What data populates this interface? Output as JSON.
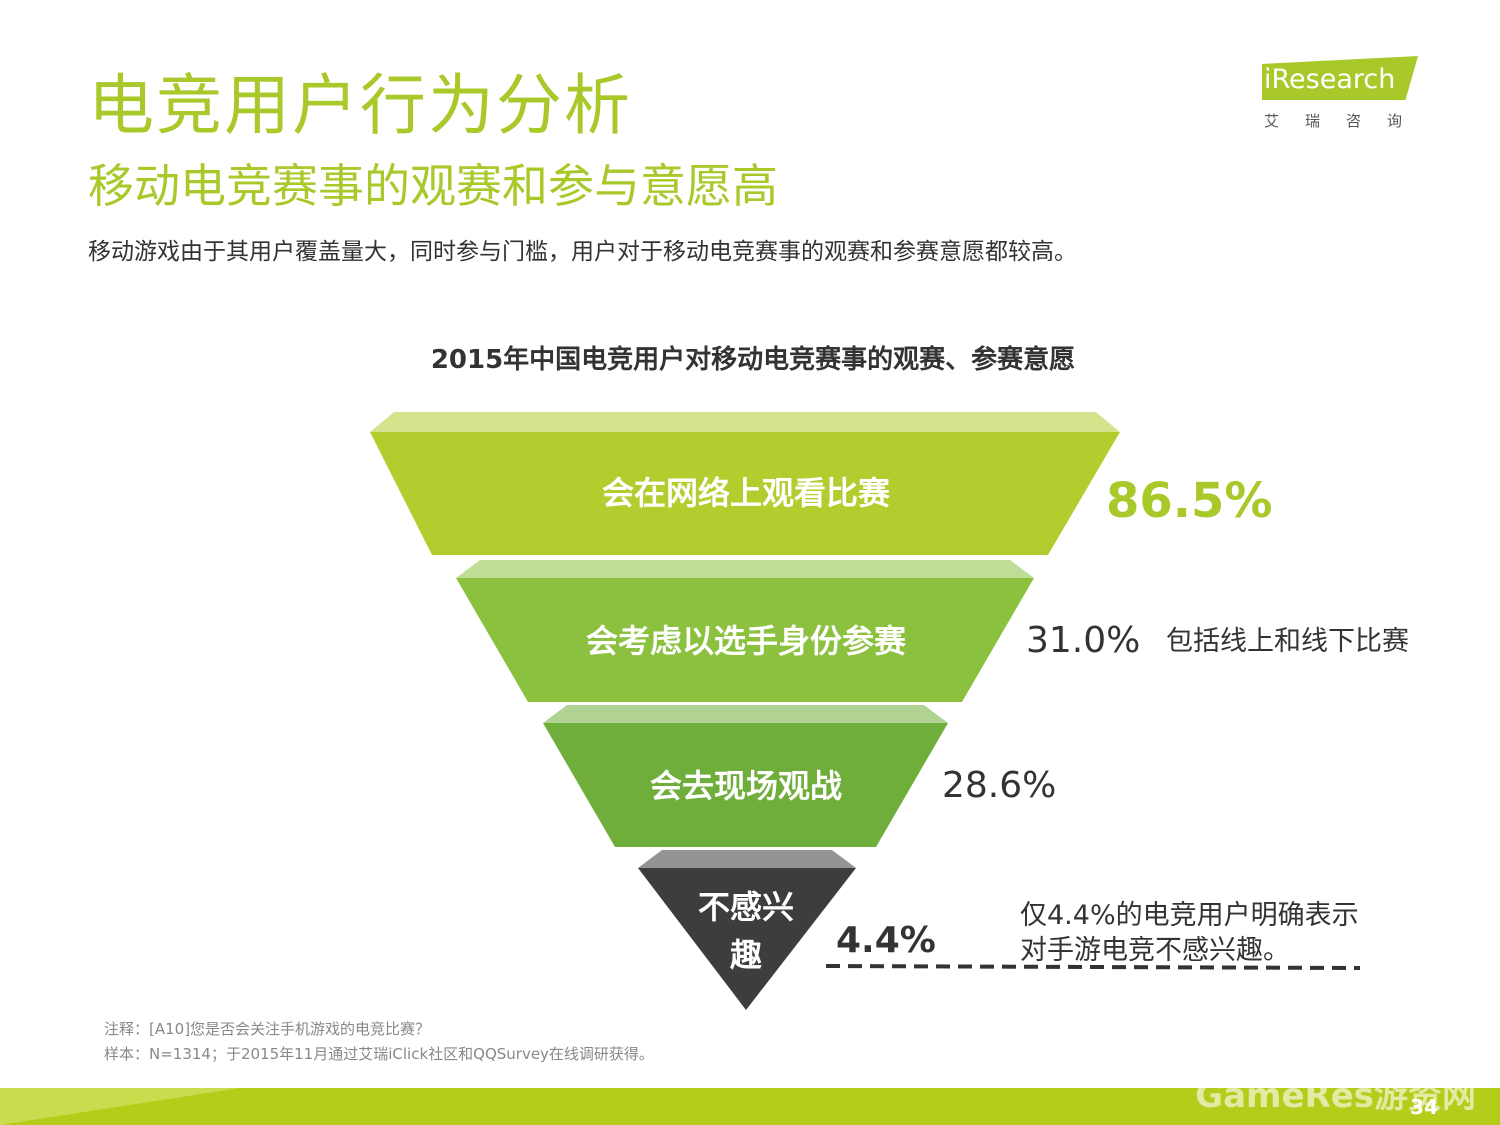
{
  "header": {
    "title": "电竞用户行为分析",
    "subtitle": "移动电竞赛事的观赛和参与意愿高",
    "description": "移动游戏由于其用户覆盖量大，同时参与门槛，用户对于移动电竞赛事的观赛和参赛意愿都较高。"
  },
  "logo": {
    "text": "iResearch",
    "cn": "艾瑞咨询"
  },
  "chart_data": {
    "type": "funnel",
    "title": "2015年中国电竞用户对移动电竞赛事的观赛、参赛意愿",
    "categories": [
      "会在网络上观看比赛",
      "会考虑以选手身份参赛",
      "会去现场观战",
      "不感兴趣"
    ],
    "values": [
      86.5,
      31.0,
      28.6,
      4.4
    ],
    "value_labels": [
      "86.5%",
      "31.0%",
      "28.6%",
      "4.4%"
    ],
    "colors": [
      "#b5cc2e",
      "#8cc13f",
      "#6fae3b",
      "#3d3d3d"
    ],
    "annotations": [
      {
        "text": "包括线上和线下比赛"
      },
      {
        "lines": [
          "仅4.4%的电竞用户明确表示",
          "对手游电竞不感兴趣。"
        ]
      }
    ]
  },
  "footnotes": {
    "note": "注释：[A10]您是否会关注手机游戏的电竞比赛？",
    "sample": "样本：N=1314；于2015年11月通过艾瑞iClick社区和QQSurvey在线调研获得。"
  },
  "footer": {
    "page": "34",
    "watermark": "GameRes游资网"
  }
}
